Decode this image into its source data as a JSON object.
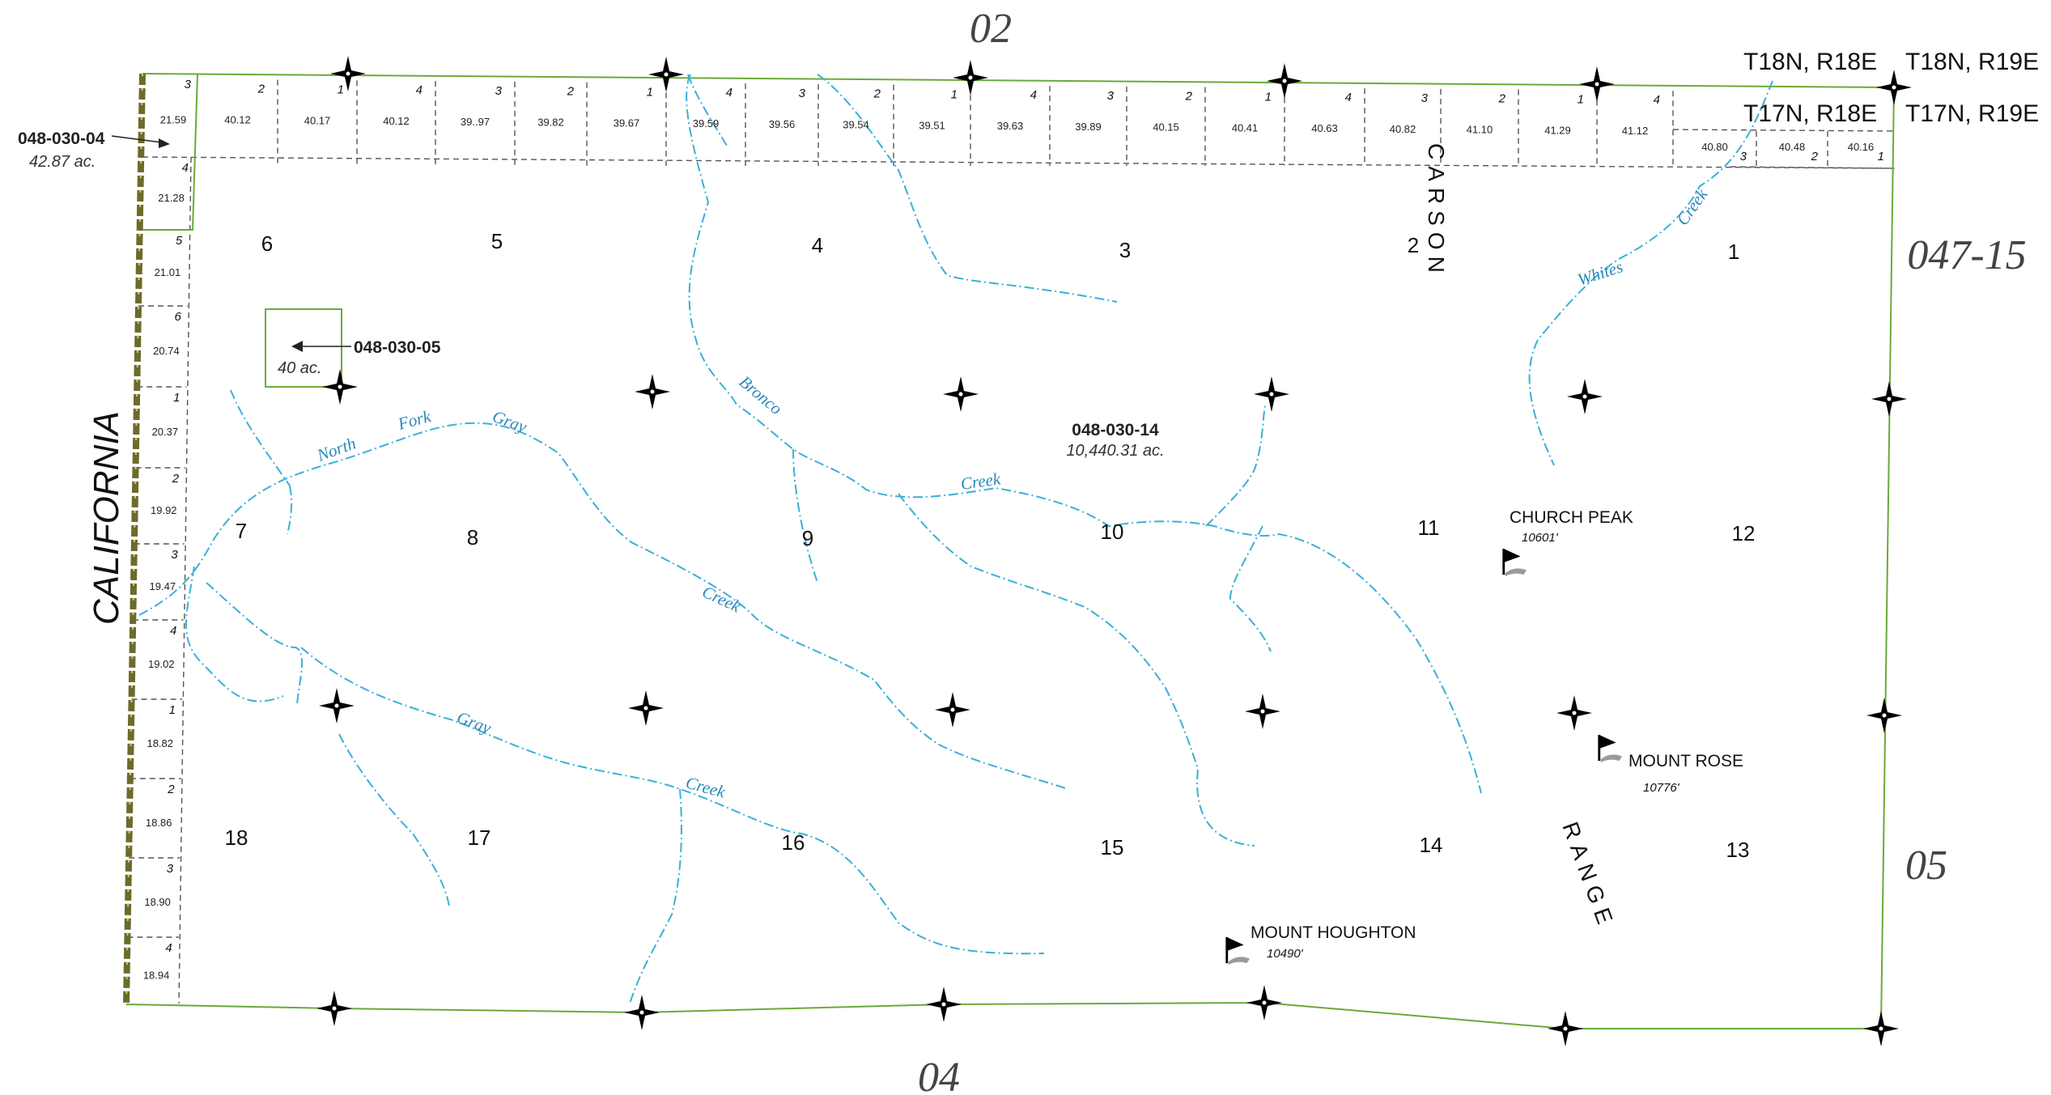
{
  "colors": {
    "boundary": "#6aaa3a",
    "stream": "#3ab0d8",
    "creek_label": "#2a88b8",
    "state_line": "#6b6b2a",
    "text": "#111111"
  },
  "icons": {
    "corner_marker": "four-point-star-icon",
    "peak_marker": "summit-flag-icon"
  },
  "sheet_refs": {
    "top": "02",
    "bottom": "04",
    "right_upper": "047-15",
    "right_lower": "05"
  },
  "township_labels": {
    "nw_upper": "T18N, R18E",
    "ne_upper": "T18N, R19E",
    "nw_lower": "T17N, R18E",
    "ne_lower": "T17N, R19E"
  },
  "state_label": "CALIFORNIA",
  "range_words": [
    "CARSON",
    "RANGE"
  ],
  "parcels": [
    {
      "apn": "048-030-04",
      "area": "42.87 ac."
    },
    {
      "apn": "048-030-05",
      "area": "40 ac."
    },
    {
      "apn": "048-030-14",
      "area": "10,440.31 ac."
    }
  ],
  "sections": [
    "1",
    "2",
    "3",
    "4",
    "5",
    "6",
    "7",
    "8",
    "9",
    "10",
    "11",
    "12",
    "13",
    "14",
    "15",
    "16",
    "17",
    "18"
  ],
  "top_lots": [
    {
      "num": "2",
      "acres": "40.12"
    },
    {
      "num": "1",
      "acres": "40.17"
    },
    {
      "num": "4",
      "acres": "40.12"
    },
    {
      "num": "3",
      "acres": "39..97"
    },
    {
      "num": "2",
      "acres": "39.82"
    },
    {
      "num": "1",
      "acres": "39.67"
    },
    {
      "num": "4",
      "acres": "39.59"
    },
    {
      "num": "3",
      "acres": "39.56"
    },
    {
      "num": "2",
      "acres": "39.54"
    },
    {
      "num": "1",
      "acres": "39.51"
    },
    {
      "num": "4",
      "acres": "39.63"
    },
    {
      "num": "3",
      "acres": "39.89"
    },
    {
      "num": "2",
      "acres": "40.15"
    },
    {
      "num": "1",
      "acres": "40.41"
    },
    {
      "num": "4",
      "acres": "40.63"
    },
    {
      "num": "3",
      "acres": "40.82"
    },
    {
      "num": "2",
      "acres": "41.10"
    },
    {
      "num": "1",
      "acres": "41.29"
    },
    {
      "num": "4",
      "acres": "41.12"
    }
  ],
  "east_lots": [
    {
      "num": "3",
      "acres": "40.80"
    },
    {
      "num": "2",
      "acres": "40.48"
    },
    {
      "num": "1",
      "acres": "40.16"
    }
  ],
  "west_lots": [
    {
      "num": "3",
      "acres": "21.59"
    },
    {
      "num": "4",
      "acres": "21.28"
    },
    {
      "num": "5",
      "acres": "21.01"
    },
    {
      "num": "6",
      "acres": "20.74"
    },
    {
      "num": "1",
      "acres": "20.37"
    },
    {
      "num": "2",
      "acres": "19.92"
    },
    {
      "num": "3",
      "acres": "19.47"
    },
    {
      "num": "4",
      "acres": "19.02"
    },
    {
      "num": "1",
      "acres": "18.82"
    },
    {
      "num": "2",
      "acres": "18.86"
    },
    {
      "num": "3",
      "acres": "18.90"
    },
    {
      "num": "4",
      "acres": "18.94"
    }
  ],
  "creek_labels": [
    "North",
    "Fork",
    "Gray",
    "Creek",
    "Bronco",
    "Creek",
    "Whites",
    "Creek",
    "Gray",
    "Creek"
  ],
  "peaks": [
    {
      "name": "CHURCH PEAK",
      "elev": "10601'"
    },
    {
      "name": "MOUNT  ROSE",
      "elev": "10776'"
    },
    {
      "name": "MOUNT HOUGHTON",
      "elev": "10490'"
    }
  ]
}
